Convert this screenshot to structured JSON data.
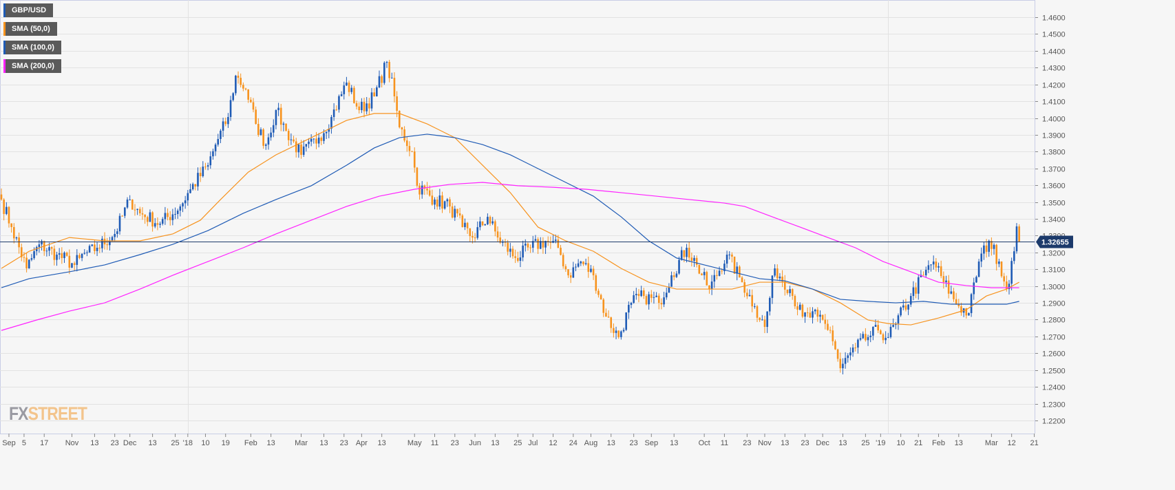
{
  "legend": [
    {
      "label": "GBP/USD",
      "color": "#1f5bb5"
    },
    {
      "label": "SMA (50,0)",
      "color": "#f7931e"
    },
    {
      "label": "SMA (100,0)",
      "color": "#1f5bb5"
    },
    {
      "label": "SMA (200,0)",
      "color": "#ff22ff"
    }
  ],
  "logo": {
    "fx": "FX",
    "street": "STREET"
  },
  "chart_data": {
    "type": "candlestick",
    "symbol": "GBP/USD",
    "current_price": "1.32655",
    "ylim": [
      1.215,
      1.47
    ],
    "y_ticks": [
      "1.2200",
      "1.2300",
      "1.2400",
      "1.2500",
      "1.2600",
      "1.2700",
      "1.2800",
      "1.2900",
      "1.3000",
      "1.3100",
      "1.3200",
      "1.3300",
      "1.3400",
      "1.3500",
      "1.3600",
      "1.3700",
      "1.3800",
      "1.3900",
      "1.4000",
      "1.4100",
      "1.4200",
      "1.4300",
      "1.4400",
      "1.4500",
      "1.4600"
    ],
    "x_ticks": [
      {
        "day": 3,
        "label": "Sep"
      },
      {
        "day": 9,
        "label": "5"
      },
      {
        "day": 17,
        "label": "17"
      },
      {
        "day": 28,
        "label": "Nov"
      },
      {
        "day": 37,
        "label": "13"
      },
      {
        "day": 45,
        "label": "23"
      },
      {
        "day": 51,
        "label": "Dec"
      },
      {
        "day": 60,
        "label": "13"
      },
      {
        "day": 69,
        "label": "25"
      },
      {
        "day": 74,
        "label": "'18"
      },
      {
        "day": 81,
        "label": "10"
      },
      {
        "day": 89,
        "label": "19"
      },
      {
        "day": 99,
        "label": "Feb"
      },
      {
        "day": 107,
        "label": "13"
      },
      {
        "day": 119,
        "label": "Mar"
      },
      {
        "day": 128,
        "label": "13"
      },
      {
        "day": 136,
        "label": "23"
      },
      {
        "day": 143,
        "label": "Apr"
      },
      {
        "day": 151,
        "label": "13"
      },
      {
        "day": 164,
        "label": "May"
      },
      {
        "day": 172,
        "label": "11"
      },
      {
        "day": 180,
        "label": "23"
      },
      {
        "day": 188,
        "label": "Jun"
      },
      {
        "day": 196,
        "label": "13"
      },
      {
        "day": 205,
        "label": "25"
      },
      {
        "day": 211,
        "label": "Jul"
      },
      {
        "day": 219,
        "label": "12"
      },
      {
        "day": 227,
        "label": "24"
      },
      {
        "day": 234,
        "label": "Aug"
      },
      {
        "day": 242,
        "label": "13"
      },
      {
        "day": 251,
        "label": "23"
      },
      {
        "day": 258,
        "label": "Sep"
      },
      {
        "day": 267,
        "label": "13"
      },
      {
        "day": 279,
        "label": "Oct"
      },
      {
        "day": 287,
        "label": "11"
      },
      {
        "day": 296,
        "label": "23"
      },
      {
        "day": 303,
        "label": "Nov"
      },
      {
        "day": 311,
        "label": "13"
      },
      {
        "day": 319,
        "label": "23"
      },
      {
        "day": 326,
        "label": "Dec"
      },
      {
        "day": 334,
        "label": "13"
      },
      {
        "day": 343,
        "label": "25"
      },
      {
        "day": 349,
        "label": "'19"
      },
      {
        "day": 357,
        "label": "10"
      },
      {
        "day": 364,
        "label": "21"
      },
      {
        "day": 372,
        "label": "Feb"
      },
      {
        "day": 380,
        "label": "13"
      },
      {
        "day": 393,
        "label": "Mar"
      },
      {
        "day": 401,
        "label": "12"
      },
      {
        "day": 410,
        "label": "21"
      }
    ],
    "year_gridlines": [
      74,
      352
    ],
    "close_keypoints": [
      [
        0,
        1.3515
      ],
      [
        4,
        1.3351
      ],
      [
        10,
        1.3105
      ],
      [
        15,
        1.3248
      ],
      [
        22,
        1.3187
      ],
      [
        29,
        1.3126
      ],
      [
        31,
        1.3167
      ],
      [
        38,
        1.3228
      ],
      [
        45,
        1.331
      ],
      [
        51,
        1.3515
      ],
      [
        55,
        1.3433
      ],
      [
        63,
        1.3371
      ],
      [
        71,
        1.3474
      ],
      [
        75,
        1.3576
      ],
      [
        82,
        1.3719
      ],
      [
        85,
        1.3842
      ],
      [
        90,
        1.4006
      ],
      [
        93,
        1.4252
      ],
      [
        97,
        1.417
      ],
      [
        101,
        1.3965
      ],
      [
        105,
        1.3842
      ],
      [
        109,
        1.4047
      ],
      [
        113,
        1.3924
      ],
      [
        119,
        1.3781
      ],
      [
        126,
        1.3883
      ],
      [
        131,
        1.4006
      ],
      [
        137,
        1.4211
      ],
      [
        142,
        1.4047
      ],
      [
        148,
        1.4129
      ],
      [
        153,
        1.4334
      ],
      [
        156,
        1.4129
      ],
      [
        158,
        1.3945
      ],
      [
        163,
        1.3801
      ],
      [
        165,
        1.3597
      ],
      [
        172,
        1.3515
      ],
      [
        178,
        1.3474
      ],
      [
        183,
        1.3351
      ],
      [
        187,
        1.3289
      ],
      [
        193,
        1.3412
      ],
      [
        197,
        1.3289
      ],
      [
        204,
        1.3167
      ],
      [
        210,
        1.3228
      ],
      [
        216,
        1.3269
      ],
      [
        221,
        1.3228
      ],
      [
        225,
        1.3064
      ],
      [
        230,
        1.3146
      ],
      [
        235,
        1.3064
      ],
      [
        240,
        1.2818
      ],
      [
        245,
        1.2696
      ],
      [
        250,
        1.29
      ],
      [
        255,
        1.2941
      ],
      [
        261,
        1.29
      ],
      [
        266,
        1.3064
      ],
      [
        272,
        1.3228
      ],
      [
        276,
        1.3126
      ],
      [
        281,
        1.2982
      ],
      [
        288,
        1.3187
      ],
      [
        294,
        1.3023
      ],
      [
        299,
        1.288
      ],
      [
        303,
        1.2757
      ],
      [
        307,
        1.3105
      ],
      [
        313,
        1.2982
      ],
      [
        318,
        1.2818
      ],
      [
        324,
        1.2818
      ],
      [
        329,
        1.2736
      ],
      [
        333,
        1.2511
      ],
      [
        339,
        1.2634
      ],
      [
        344,
        1.2696
      ],
      [
        348,
        1.2736
      ],
      [
        352,
        1.2696
      ],
      [
        355,
        1.2777
      ],
      [
        361,
        1.2941
      ],
      [
        366,
        1.3064
      ],
      [
        370,
        1.3146
      ],
      [
        374,
        1.3023
      ],
      [
        380,
        1.288
      ],
      [
        384,
        1.2839
      ],
      [
        388,
        1.3146
      ],
      [
        392,
        1.3269
      ],
      [
        396,
        1.3146
      ],
      [
        399,
        1.2982
      ],
      [
        402,
        1.3207
      ],
      [
        403,
        1.3355
      ],
      [
        404,
        1.32655
      ]
    ],
    "series": [
      {
        "name": "SMA (50,0)",
        "color": "#f7931e",
        "points": [
          [
            0,
            1.3105
          ],
          [
            11,
            1.3207
          ],
          [
            27,
            1.3289
          ],
          [
            41,
            1.3269
          ],
          [
            55,
            1.3269
          ],
          [
            68,
            1.331
          ],
          [
            79,
            1.3392
          ],
          [
            87,
            1.3515
          ],
          [
            98,
            1.3678
          ],
          [
            109,
            1.3781
          ],
          [
            123,
            1.3883
          ],
          [
            137,
            1.3986
          ],
          [
            148,
            1.4027
          ],
          [
            158,
            1.4027
          ],
          [
            169,
            1.3965
          ],
          [
            180,
            1.3883
          ],
          [
            191,
            1.3719
          ],
          [
            202,
            1.3556
          ],
          [
            213,
            1.3351
          ],
          [
            224,
            1.3269
          ],
          [
            235,
            1.3207
          ],
          [
            246,
            1.3105
          ],
          [
            257,
            1.3023
          ],
          [
            268,
            1.2982
          ],
          [
            279,
            1.2982
          ],
          [
            290,
            1.2982
          ],
          [
            301,
            1.3023
          ],
          [
            311,
            1.3023
          ],
          [
            322,
            1.2982
          ],
          [
            333,
            1.29
          ],
          [
            344,
            1.2798
          ],
          [
            352,
            1.2777
          ],
          [
            361,
            1.2769
          ],
          [
            372,
            1.281
          ],
          [
            383,
            1.2859
          ],
          [
            391,
            1.2941
          ],
          [
            399,
            1.2982
          ],
          [
            404,
            1.3023
          ]
        ]
      },
      {
        "name": "SMA (100,0)",
        "color": "#1f5bb5",
        "points": [
          [
            0,
            1.299
          ],
          [
            11,
            1.3044
          ],
          [
            27,
            1.3085
          ],
          [
            41,
            1.3126
          ],
          [
            55,
            1.3187
          ],
          [
            68,
            1.3248
          ],
          [
            82,
            1.333
          ],
          [
            96,
            1.3433
          ],
          [
            109,
            1.3515
          ],
          [
            123,
            1.3597
          ],
          [
            137,
            1.3719
          ],
          [
            148,
            1.3822
          ],
          [
            158,
            1.3883
          ],
          [
            169,
            1.3904
          ],
          [
            180,
            1.3883
          ],
          [
            191,
            1.3842
          ],
          [
            202,
            1.3781
          ],
          [
            213,
            1.3699
          ],
          [
            224,
            1.3617
          ],
          [
            235,
            1.3535
          ],
          [
            246,
            1.3412
          ],
          [
            257,
            1.3269
          ],
          [
            268,
            1.3167
          ],
          [
            279,
            1.3126
          ],
          [
            290,
            1.3085
          ],
          [
            301,
            1.3044
          ],
          [
            311,
            1.3031
          ],
          [
            322,
            1.2982
          ],
          [
            333,
            1.2921
          ],
          [
            344,
            1.2909
          ],
          [
            355,
            1.29
          ],
          [
            366,
            1.2909
          ],
          [
            377,
            1.2892
          ],
          [
            388,
            1.2892
          ],
          [
            399,
            1.2892
          ],
          [
            404,
            1.2909
          ]
        ]
      },
      {
        "name": "SMA (200,0)",
        "color": "#ff22ff",
        "points": [
          [
            0,
            1.2736
          ],
          [
            14,
            1.2798
          ],
          [
            27,
            1.2851
          ],
          [
            41,
            1.29
          ],
          [
            55,
            1.2982
          ],
          [
            68,
            1.3064
          ],
          [
            82,
            1.3146
          ],
          [
            96,
            1.3228
          ],
          [
            109,
            1.331
          ],
          [
            123,
            1.3392
          ],
          [
            137,
            1.3474
          ],
          [
            150,
            1.3535
          ],
          [
            164,
            1.3576
          ],
          [
            178,
            1.3605
          ],
          [
            191,
            1.3617
          ],
          [
            205,
            1.3597
          ],
          [
            219,
            1.3588
          ],
          [
            232,
            1.3576
          ],
          [
            246,
            1.3556
          ],
          [
            260,
            1.3535
          ],
          [
            273,
            1.3515
          ],
          [
            287,
            1.3494
          ],
          [
            295,
            1.3474
          ],
          [
            306,
            1.3412
          ],
          [
            317,
            1.3351
          ],
          [
            328,
            1.3289
          ],
          [
            339,
            1.3228
          ],
          [
            350,
            1.3146
          ],
          [
            361,
            1.3085
          ],
          [
            372,
            1.3023
          ],
          [
            383,
            1.3003
          ],
          [
            393,
            1.299
          ],
          [
            404,
            1.299
          ]
        ]
      }
    ],
    "colors": {
      "bull": "#1f5bb5",
      "bear": "#f7931e"
    }
  }
}
